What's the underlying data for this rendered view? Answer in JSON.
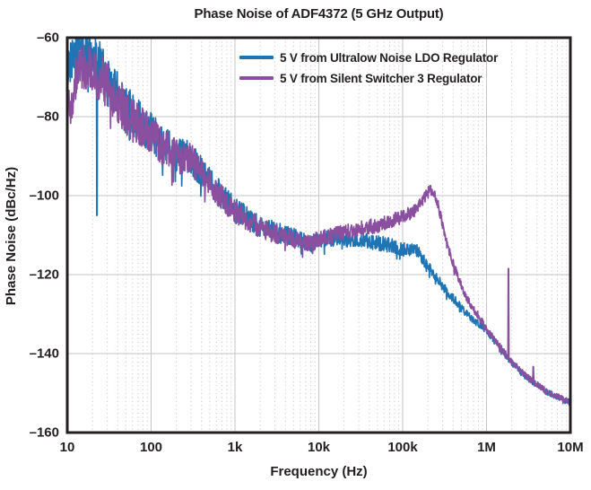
{
  "chart_data": {
    "type": "line",
    "title": "Phase Noise of ADF4372 (5 GHz Output)",
    "xlabel": "Frequency (Hz)",
    "ylabel": "Phase Noise (dBc/Hz)",
    "x_scale": "log",
    "xlim": [
      10,
      10000000
    ],
    "ylim": [
      -160,
      -60
    ],
    "x_ticks": [
      {
        "v": 10,
        "label": "10"
      },
      {
        "v": 100,
        "label": "100"
      },
      {
        "v": 1000,
        "label": "1k"
      },
      {
        "v": 10000,
        "label": "10k"
      },
      {
        "v": 100000,
        "label": "100k"
      },
      {
        "v": 1000000,
        "label": "1M"
      },
      {
        "v": 10000000,
        "label": "10M"
      }
    ],
    "y_ticks": [
      {
        "v": -60,
        "label": "–60"
      },
      {
        "v": -80,
        "label": "–80"
      },
      {
        "v": -100,
        "label": "–100"
      },
      {
        "v": -120,
        "label": "–120"
      },
      {
        "v": -140,
        "label": "–140"
      },
      {
        "v": -160,
        "label": "–160"
      }
    ],
    "grid": {
      "major": true,
      "major_color": "#c6c6c6",
      "minor_vertical_dotted": true,
      "minor_color": "#c9c9c9"
    },
    "frame_color": "#231f20",
    "background": "#ffffff",
    "legend_position": "top-right",
    "legend_box": false,
    "series": [
      {
        "name": "5 V from Ultralow Noise LDO Regulator",
        "color": "#1f74b4",
        "anchors": [
          [
            10,
            -69
          ],
          [
            11,
            -65
          ],
          [
            13,
            -63.5
          ],
          [
            16,
            -64.5
          ],
          [
            19,
            -63.5
          ],
          [
            22,
            -66
          ],
          [
            26,
            -68
          ],
          [
            30,
            -71
          ],
          [
            40,
            -74.5
          ],
          [
            50,
            -77.5
          ],
          [
            70,
            -81
          ],
          [
            100,
            -84
          ],
          [
            150,
            -87.5
          ],
          [
            200,
            -89.5
          ],
          [
            300,
            -90.5
          ],
          [
            400,
            -94
          ],
          [
            500,
            -96.5
          ],
          [
            700,
            -100
          ],
          [
            1000,
            -103.5
          ],
          [
            1500,
            -106
          ],
          [
            2000,
            -107.8
          ],
          [
            3000,
            -109
          ],
          [
            5000,
            -110.5
          ],
          [
            8000,
            -112.3
          ],
          [
            10000,
            -111
          ],
          [
            15000,
            -111
          ],
          [
            20000,
            -111
          ],
          [
            30000,
            -111.3
          ],
          [
            50000,
            -112
          ],
          [
            70000,
            -112.5
          ],
          [
            100000,
            -113.5
          ],
          [
            150000,
            -114
          ],
          [
            200000,
            -118
          ],
          [
            250000,
            -120.5
          ],
          [
            300000,
            -123
          ],
          [
            400000,
            -126
          ],
          [
            500000,
            -128.5
          ],
          [
            700000,
            -131.5
          ],
          [
            1000000,
            -134
          ],
          [
            1300000,
            -137.3
          ],
          [
            1600000,
            -139.8
          ],
          [
            2000000,
            -142.3
          ],
          [
            2500000,
            -144.5
          ],
          [
            3000000,
            -146
          ],
          [
            4000000,
            -148
          ],
          [
            5000000,
            -149.5
          ],
          [
            7000000,
            -151
          ],
          [
            10000000,
            -152.3
          ]
        ],
        "spikes": [
          [
            22.5,
            -105
          ]
        ]
      },
      {
        "name": "5 V from Silent Switcher 3 Regulator",
        "color": "#8a4f9e",
        "anchors": [
          [
            10,
            -72
          ],
          [
            11,
            -78.5
          ],
          [
            12,
            -72
          ],
          [
            14,
            -66.5
          ],
          [
            17,
            -67.5
          ],
          [
            20,
            -67
          ],
          [
            23,
            -69.5
          ],
          [
            27,
            -71
          ],
          [
            32,
            -73.5
          ],
          [
            42,
            -76.5
          ],
          [
            52,
            -79.5
          ],
          [
            72,
            -82
          ],
          [
            100,
            -85
          ],
          [
            150,
            -88
          ],
          [
            210,
            -90
          ],
          [
            300,
            -91
          ],
          [
            400,
            -94.5
          ],
          [
            500,
            -97
          ],
          [
            700,
            -100.5
          ],
          [
            1000,
            -104
          ],
          [
            1500,
            -106.5
          ],
          [
            2000,
            -108.2
          ],
          [
            3000,
            -109.5
          ],
          [
            5000,
            -110.8
          ],
          [
            8000,
            -112
          ],
          [
            10000,
            -110.8
          ],
          [
            15000,
            -110
          ],
          [
            20000,
            -109.4
          ],
          [
            30000,
            -108.4
          ],
          [
            50000,
            -107.5
          ],
          [
            70000,
            -106.5
          ],
          [
            100000,
            -105.2
          ],
          [
            130000,
            -104.3
          ],
          [
            160000,
            -102.3
          ],
          [
            190000,
            -100
          ],
          [
            215000,
            -98.3
          ],
          [
            235000,
            -99.3
          ],
          [
            260000,
            -101.8
          ],
          [
            280000,
            -104.5
          ],
          [
            300000,
            -107.5
          ],
          [
            330000,
            -111.5
          ],
          [
            360000,
            -114
          ],
          [
            400000,
            -117
          ],
          [
            450000,
            -120.3
          ],
          [
            500000,
            -122.8
          ],
          [
            600000,
            -126.3
          ],
          [
            700000,
            -128.6
          ],
          [
            850000,
            -131.3
          ],
          [
            1000000,
            -133.8
          ],
          [
            1300000,
            -137
          ],
          [
            1600000,
            -139.5
          ],
          [
            2000000,
            -142
          ],
          [
            2500000,
            -144.2
          ],
          [
            3000000,
            -145.8
          ],
          [
            4000000,
            -147.8
          ],
          [
            5000000,
            -149.3
          ],
          [
            7000000,
            -150.8
          ],
          [
            10000000,
            -152.3
          ]
        ],
        "spikes": [
          [
            1820000,
            -118.5
          ],
          [
            3600000,
            -143.3
          ]
        ]
      }
    ],
    "noise_profile": [
      [
        1,
        5.5
      ],
      [
        1.3,
        6.5
      ],
      [
        1.8,
        5.5
      ],
      [
        2.3,
        4.5
      ],
      [
        3,
        3
      ],
      [
        3.7,
        2.2
      ],
      [
        4.3,
        2.0
      ],
      [
        5,
        1.8
      ],
      [
        5.4,
        1.3
      ],
      [
        5.8,
        1.0
      ],
      [
        6.3,
        0.8
      ],
      [
        7,
        0.7
      ]
    ]
  }
}
